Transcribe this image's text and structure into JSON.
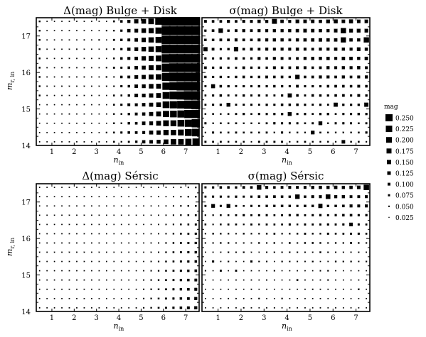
{
  "chart_data": [
    {
      "type": "scatter",
      "panel": "top-left",
      "title": "Δ(mag) Bulge + Disk",
      "xlabel": "n_in",
      "ylabel": "m_r,in",
      "xlim": [
        0.3,
        7.6
      ],
      "ylim": [
        14,
        17.5
      ],
      "xticks": [
        "1",
        "2",
        "3",
        "4",
        "5",
        "6",
        "7"
      ],
      "yticks": [
        "14",
        "15",
        "16",
        "17"
      ],
      "encoding": "marker size = mag",
      "show_ylabel": true
    },
    {
      "type": "scatter",
      "panel": "top-right",
      "title": "σ(mag) Bulge + Disk",
      "xlabel": "n_in",
      "ylabel": "",
      "xlim": [
        0.3,
        7.6
      ],
      "ylim": [
        14,
        17.5
      ],
      "xticks": [
        "1",
        "2",
        "3",
        "4",
        "5",
        "6",
        "7"
      ],
      "yticks": [],
      "encoding": "marker size = mag",
      "show_ylabel": false
    },
    {
      "type": "scatter",
      "panel": "bottom-left",
      "title": "Δ(mag) Sérsic",
      "xlabel": "n_in",
      "ylabel": "m_r,in",
      "xlim": [
        0.3,
        7.6
      ],
      "ylim": [
        14,
        17.5
      ],
      "xticks": [
        "1",
        "2",
        "3",
        "4",
        "5",
        "6",
        "7"
      ],
      "yticks": [
        "14",
        "15",
        "16",
        "17"
      ],
      "encoding": "marker size = mag",
      "show_ylabel": true
    },
    {
      "type": "scatter",
      "panel": "bottom-right",
      "title": "σ(mag) Sérsic",
      "xlabel": "n_in",
      "ylabel": "",
      "xlim": [
        0.3,
        7.6
      ],
      "ylim": [
        14,
        17.5
      ],
      "xticks": [
        "1",
        "2",
        "3",
        "4",
        "5",
        "6",
        "7"
      ],
      "yticks": [],
      "encoding": "marker size = mag",
      "show_ylabel": false
    }
  ],
  "legend": {
    "title": "mag",
    "placement": "right",
    "values": [
      0.25,
      0.225,
      0.2,
      0.175,
      0.15,
      0.125,
      0.1,
      0.075,
      0.05,
      0.025
    ],
    "labels": [
      "0.250",
      "0.225",
      "0.200",
      "0.175",
      "0.150",
      "0.125",
      "0.100",
      "0.075",
      "0.050",
      "0.025"
    ]
  },
  "axis_label_parts": {
    "n_main": "n",
    "n_sub": "in",
    "m_main": "m",
    "m_sub": "r, in"
  }
}
